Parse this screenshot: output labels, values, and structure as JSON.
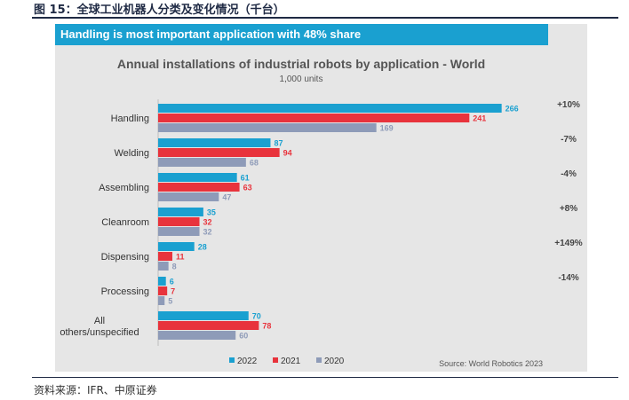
{
  "figure_title": "图 15：全球工业机器人分类及变化情况（千台）",
  "banner": "Handling is most important application with 48% share",
  "source_note": "资料来源：IFR、中原证券",
  "chart_data": {
    "type": "bar",
    "orientation": "horizontal",
    "title": "Annual installations of industrial robots by application - World",
    "subtitle": "1,000 units",
    "categories": [
      "Handling",
      "Welding",
      "Assembling",
      "Cleanroom",
      "Dispensing",
      "Processing",
      "All others/unspecified"
    ],
    "series": [
      {
        "name": "2022",
        "color": "#1aa0d0",
        "values": [
          266,
          87,
          61,
          35,
          28,
          6,
          70
        ]
      },
      {
        "name": "2021",
        "color": "#e8333c",
        "values": [
          241,
          94,
          63,
          32,
          11,
          7,
          78
        ]
      },
      {
        "name": "2020",
        "color": "#8e9bb8",
        "values": [
          169,
          68,
          47,
          32,
          8,
          5,
          60
        ]
      }
    ],
    "changes": [
      "+10%",
      "-7%",
      "-4%",
      "+8%",
      "+149%",
      "-14%",
      ""
    ],
    "xlim": [
      0,
      280
    ],
    "legend_position": "bottom-left",
    "source": "Source: World Robotics 2023"
  }
}
